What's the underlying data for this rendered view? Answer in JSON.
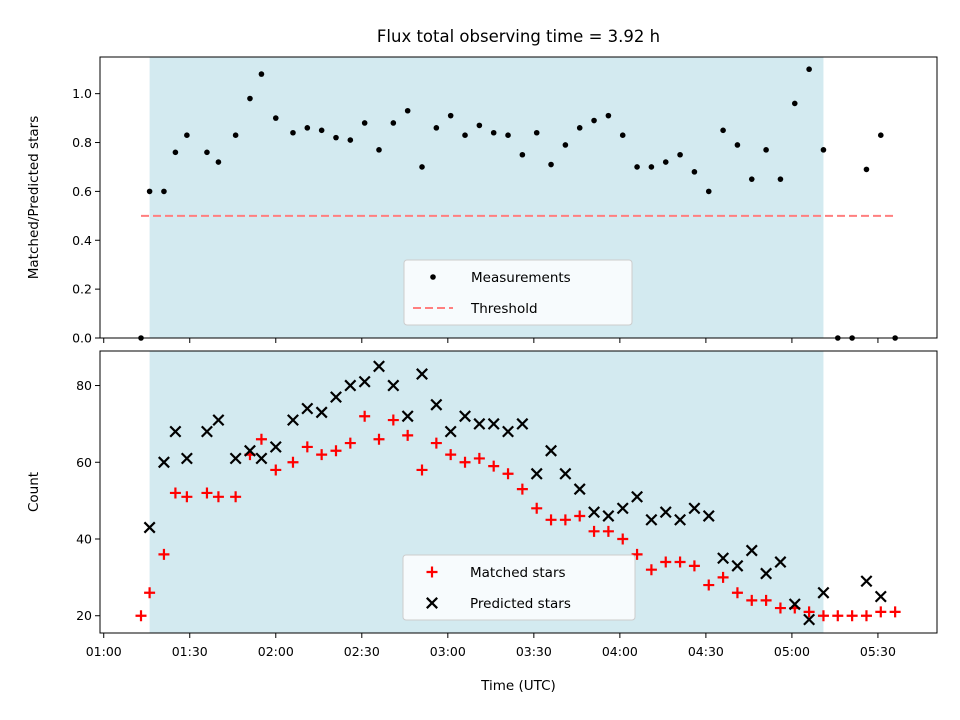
{
  "chart_data": {
    "title": "Flux total observing time = 3.92 h",
    "x_tick_labels": [
      "01:00",
      "01:30",
      "02:00",
      "02:30",
      "03:00",
      "03:30",
      "04:00",
      "04:30",
      "05:00",
      "05:30"
    ],
    "xlabel": "Time (UTC)",
    "shaded_interval": [
      "01:16",
      "05:11"
    ],
    "shade_color": "#d3eaf0",
    "panels": [
      {
        "type": "scatter",
        "ylabel": "Matched/Predicted stars",
        "ylim": [
          0,
          1.15
        ],
        "yticks": [
          "0.0",
          "0.2",
          "0.4",
          "0.6",
          "0.8",
          "1.0"
        ],
        "legend_position": "lower center",
        "series": [
          {
            "name": "Measurements",
            "marker": "dot",
            "color": "#000000",
            "points": [
              [
                "01:13",
                0.0
              ],
              [
                "01:16",
                0.6
              ],
              [
                "01:21",
                0.6
              ],
              [
                "01:25",
                0.76
              ],
              [
                "01:29",
                0.83
              ],
              [
                "01:36",
                0.76
              ],
              [
                "01:40",
                0.72
              ],
              [
                "01:46",
                0.83
              ],
              [
                "01:51",
                0.98
              ],
              [
                "01:55",
                1.08
              ],
              [
                "02:00",
                0.9
              ],
              [
                "02:06",
                0.84
              ],
              [
                "02:11",
                0.86
              ],
              [
                "02:16",
                0.85
              ],
              [
                "02:21",
                0.82
              ],
              [
                "02:26",
                0.81
              ],
              [
                "02:31",
                0.88
              ],
              [
                "02:36",
                0.77
              ],
              [
                "02:41",
                0.88
              ],
              [
                "02:46",
                0.93
              ],
              [
                "02:51",
                0.7
              ],
              [
                "02:56",
                0.86
              ],
              [
                "03:01",
                0.91
              ],
              [
                "03:06",
                0.83
              ],
              [
                "03:11",
                0.87
              ],
              [
                "03:16",
                0.84
              ],
              [
                "03:21",
                0.83
              ],
              [
                "03:26",
                0.75
              ],
              [
                "03:31",
                0.84
              ],
              [
                "03:36",
                0.71
              ],
              [
                "03:41",
                0.79
              ],
              [
                "03:46",
                0.86
              ],
              [
                "03:51",
                0.89
              ],
              [
                "03:56",
                0.91
              ],
              [
                "04:01",
                0.83
              ],
              [
                "04:06",
                0.7
              ],
              [
                "04:11",
                0.7
              ],
              [
                "04:16",
                0.72
              ],
              [
                "04:21",
                0.75
              ],
              [
                "04:26",
                0.68
              ],
              [
                "04:31",
                0.6
              ],
              [
                "04:36",
                0.85
              ],
              [
                "04:41",
                0.79
              ],
              [
                "04:46",
                0.65
              ],
              [
                "04:51",
                0.77
              ],
              [
                "04:56",
                0.65
              ],
              [
                "05:01",
                0.96
              ],
              [
                "05:06",
                1.1
              ],
              [
                "05:11",
                0.77
              ],
              [
                "05:16",
                0.0
              ],
              [
                "05:21",
                0.0
              ],
              [
                "05:26",
                0.69
              ],
              [
                "05:31",
                0.83
              ],
              [
                "05:36",
                0.0
              ]
            ]
          },
          {
            "name": "Threshold",
            "marker": "dashed-line",
            "color": "#ff7f7f",
            "y": 0.5,
            "x_range": [
              "01:13",
              "05:36"
            ]
          }
        ]
      },
      {
        "type": "scatter",
        "ylabel": "Count",
        "ylim": [
          15.5,
          89
        ],
        "yticks": [
          "20",
          "40",
          "60",
          "80"
        ],
        "legend_position": "lower center",
        "series": [
          {
            "name": "Matched stars",
            "marker": "plus",
            "color": "#ff0000",
            "points": [
              [
                "01:13",
                20
              ],
              [
                "01:16",
                26
              ],
              [
                "01:21",
                36
              ],
              [
                "01:25",
                52
              ],
              [
                "01:29",
                51
              ],
              [
                "01:36",
                52
              ],
              [
                "01:40",
                51
              ],
              [
                "01:46",
                51
              ],
              [
                "01:51",
                62
              ],
              [
                "01:55",
                66
              ],
              [
                "02:00",
                58
              ],
              [
                "02:06",
                60
              ],
              [
                "02:11",
                64
              ],
              [
                "02:16",
                62
              ],
              [
                "02:21",
                63
              ],
              [
                "02:26",
                65
              ],
              [
                "02:31",
                72
              ],
              [
                "02:36",
                66
              ],
              [
                "02:41",
                71
              ],
              [
                "02:46",
                67
              ],
              [
                "02:51",
                58
              ],
              [
                "02:56",
                65
              ],
              [
                "03:01",
                62
              ],
              [
                "03:06",
                60
              ],
              [
                "03:11",
                61
              ],
              [
                "03:16",
                59
              ],
              [
                "03:21",
                57
              ],
              [
                "03:26",
                53
              ],
              [
                "03:31",
                48
              ],
              [
                "03:36",
                45
              ],
              [
                "03:41",
                45
              ],
              [
                "03:46",
                46
              ],
              [
                "03:51",
                42
              ],
              [
                "03:56",
                42
              ],
              [
                "04:01",
                40
              ],
              [
                "04:06",
                36
              ],
              [
                "04:11",
                32
              ],
              [
                "04:16",
                34
              ],
              [
                "04:21",
                34
              ],
              [
                "04:26",
                33
              ],
              [
                "04:31",
                28
              ],
              [
                "04:36",
                30
              ],
              [
                "04:41",
                26
              ],
              [
                "04:46",
                24
              ],
              [
                "04:51",
                24
              ],
              [
                "04:56",
                22
              ],
              [
                "05:01",
                22
              ],
              [
                "05:06",
                21
              ],
              [
                "05:11",
                20
              ],
              [
                "05:16",
                20
              ],
              [
                "05:21",
                20
              ],
              [
                "05:26",
                20
              ],
              [
                "05:31",
                21
              ],
              [
                "05:36",
                21
              ]
            ]
          },
          {
            "name": "Predicted stars",
            "marker": "x",
            "color": "#000000",
            "points": [
              [
                "01:16",
                43
              ],
              [
                "01:21",
                60
              ],
              [
                "01:25",
                68
              ],
              [
                "01:29",
                61
              ],
              [
                "01:36",
                68
              ],
              [
                "01:40",
                71
              ],
              [
                "01:46",
                61
              ],
              [
                "01:51",
                63
              ],
              [
                "01:55",
                61
              ],
              [
                "02:00",
                64
              ],
              [
                "02:06",
                71
              ],
              [
                "02:11",
                74
              ],
              [
                "02:16",
                73
              ],
              [
                "02:21",
                77
              ],
              [
                "02:26",
                80
              ],
              [
                "02:31",
                81
              ],
              [
                "02:36",
                85
              ],
              [
                "02:41",
                80
              ],
              [
                "02:46",
                72
              ],
              [
                "02:51",
                83
              ],
              [
                "02:56",
                75
              ],
              [
                "03:01",
                68
              ],
              [
                "03:06",
                72
              ],
              [
                "03:11",
                70
              ],
              [
                "03:16",
                70
              ],
              [
                "03:21",
                68
              ],
              [
                "03:26",
                70
              ],
              [
                "03:31",
                57
              ],
              [
                "03:36",
                63
              ],
              [
                "03:41",
                57
              ],
              [
                "03:46",
                53
              ],
              [
                "03:51",
                47
              ],
              [
                "03:56",
                46
              ],
              [
                "04:01",
                48
              ],
              [
                "04:06",
                51
              ],
              [
                "04:11",
                45
              ],
              [
                "04:16",
                47
              ],
              [
                "04:21",
                45
              ],
              [
                "04:26",
                48
              ],
              [
                "04:31",
                46
              ],
              [
                "04:36",
                35
              ],
              [
                "04:41",
                33
              ],
              [
                "04:46",
                37
              ],
              [
                "04:51",
                31
              ],
              [
                "04:56",
                34
              ],
              [
                "05:01",
                23
              ],
              [
                "05:06",
                19
              ],
              [
                "05:11",
                26
              ],
              [
                "05:26",
                29
              ],
              [
                "05:31",
                25
              ]
            ]
          }
        ]
      }
    ]
  }
}
